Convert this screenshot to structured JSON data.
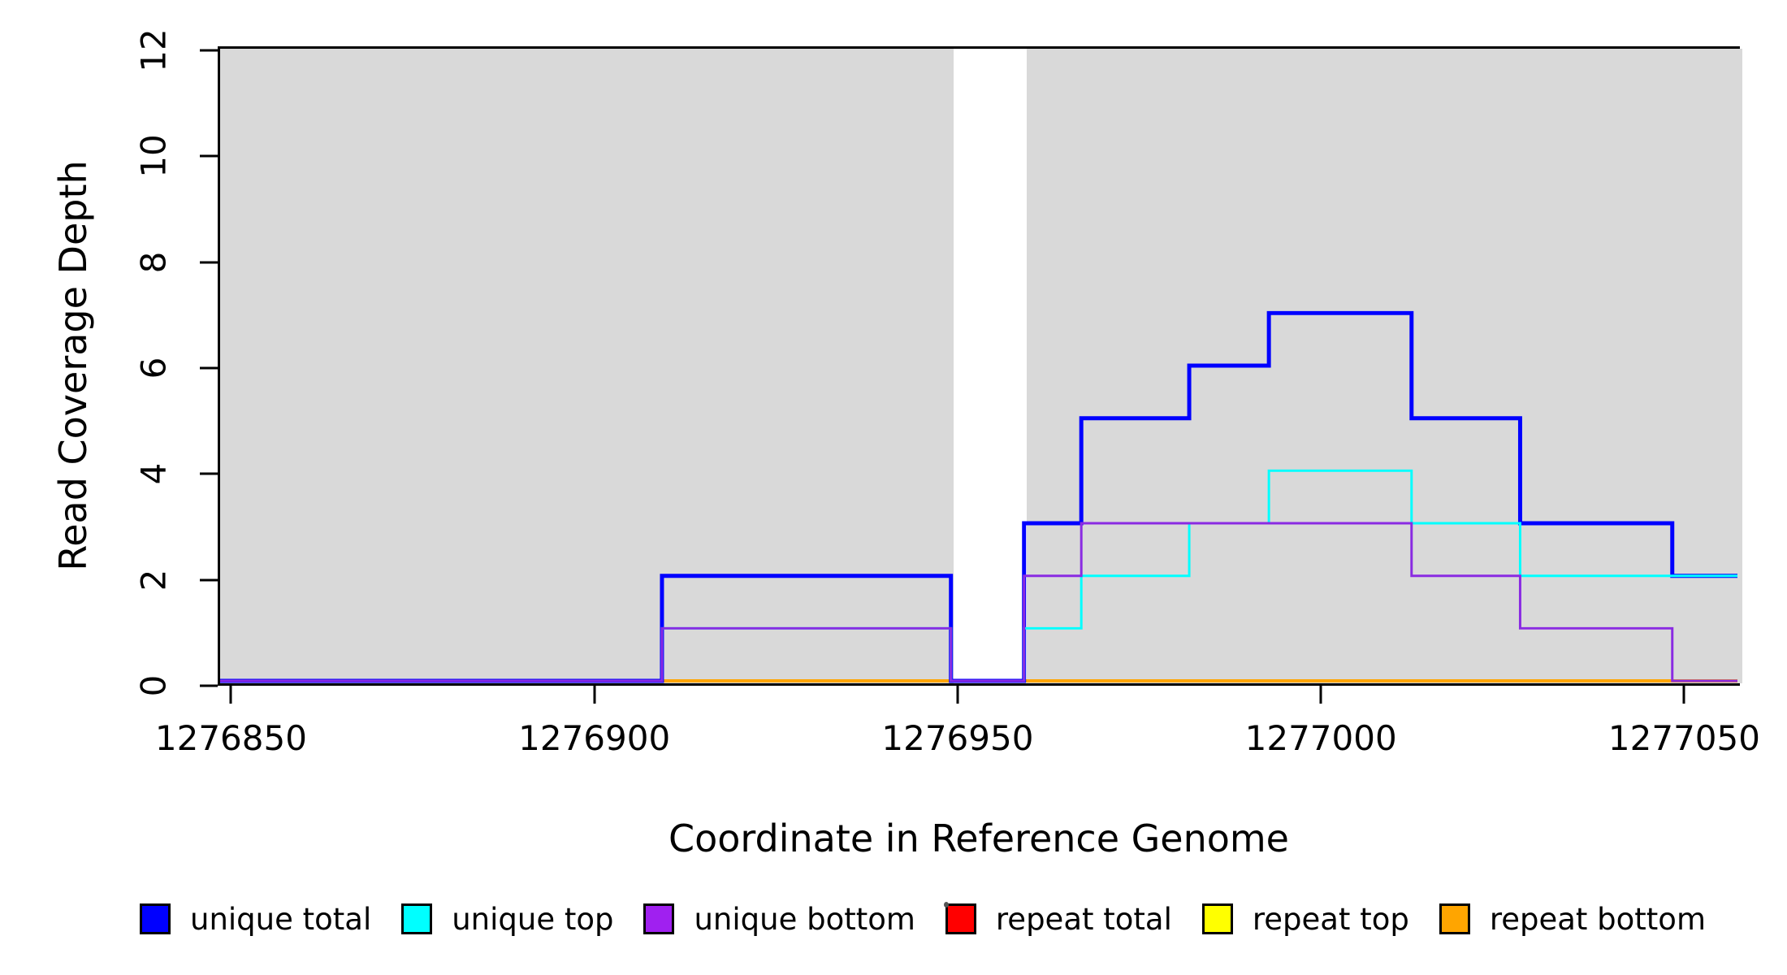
{
  "chart_data": {
    "type": "line",
    "step": true,
    "title": "",
    "xlabel": "Coordinate in Reference Genome",
    "ylabel": "Read Coverage Depth",
    "xlim": [
      1276848.5,
      1277058
    ],
    "ylim": [
      0,
      12
    ],
    "x_ticks": [
      1276850,
      1276900,
      1276950,
      1277000,
      1277050
    ],
    "y_ticks": [
      0,
      2,
      4,
      6,
      8,
      10,
      12
    ],
    "grid": false,
    "shaded_regions": {
      "color": "#D9D9D9",
      "note": "mappability shading with white gap",
      "ranges": [
        [
          1276848.5,
          1276949.4
        ],
        [
          1276959.5,
          1277058
        ]
      ]
    },
    "series": [
      {
        "name": "repeat total",
        "color": "#FF0000",
        "width": 3,
        "points": [
          [
            1276848.5,
            0
          ],
          [
            1277058,
            0
          ]
        ]
      },
      {
        "name": "repeat top",
        "color": "#FFFF00",
        "width": 3,
        "points": [
          [
            1276848.5,
            0
          ],
          [
            1277058,
            0
          ]
        ]
      },
      {
        "name": "repeat bottom",
        "color": "#FFA500",
        "width": 4,
        "points": [
          [
            1276848.5,
            0
          ],
          [
            1277058,
            0
          ]
        ]
      },
      {
        "name": "unique total",
        "color": "#0000FF",
        "width": 5,
        "points": [
          [
            1276848.5,
            0
          ],
          [
            1276909.5,
            0
          ],
          [
            1276909.5,
            2
          ],
          [
            1276949.4,
            2
          ],
          [
            1276949.4,
            0
          ],
          [
            1276959.5,
            0
          ],
          [
            1276959.5,
            3
          ],
          [
            1276967.4,
            3
          ],
          [
            1276967.4,
            5
          ],
          [
            1276982.3,
            5
          ],
          [
            1276982.3,
            6
          ],
          [
            1276993.3,
            6
          ],
          [
            1276993.3,
            7
          ],
          [
            1277013,
            7
          ],
          [
            1277013,
            5
          ],
          [
            1277028,
            5
          ],
          [
            1277028,
            3
          ],
          [
            1277049,
            3
          ],
          [
            1277049,
            2
          ],
          [
            1277058,
            2
          ]
        ]
      },
      {
        "name": "unique top",
        "color": "#00FFFF",
        "width": 3,
        "points": [
          [
            1276848.5,
            0
          ],
          [
            1276909.5,
            0
          ],
          [
            1276909.5,
            1
          ],
          [
            1276949.4,
            1
          ],
          [
            1276949.4,
            0
          ],
          [
            1276959.5,
            0
          ],
          [
            1276959.5,
            1
          ],
          [
            1276967.4,
            1
          ],
          [
            1276967.4,
            2
          ],
          [
            1276982.3,
            2
          ],
          [
            1276982.3,
            3
          ],
          [
            1276993.3,
            3
          ],
          [
            1276993.3,
            4
          ],
          [
            1277013,
            4
          ],
          [
            1277013,
            3
          ],
          [
            1277028,
            3
          ],
          [
            1277028,
            2
          ],
          [
            1277058,
            2
          ]
        ]
      },
      {
        "name": "unique bottom",
        "color": "#8A2BE2",
        "width": 3,
        "points": [
          [
            1276848.5,
            0
          ],
          [
            1276909.5,
            0
          ],
          [
            1276909.5,
            1
          ],
          [
            1276949.4,
            1
          ],
          [
            1276949.4,
            0
          ],
          [
            1276959.5,
            0
          ],
          [
            1276959.5,
            2
          ],
          [
            1276967.4,
            2
          ],
          [
            1276967.4,
            3
          ],
          [
            1277013,
            3
          ],
          [
            1277013,
            2
          ],
          [
            1277028,
            2
          ],
          [
            1277028,
            1
          ],
          [
            1277049,
            1
          ],
          [
            1277049,
            0
          ],
          [
            1277058,
            0
          ]
        ]
      }
    ],
    "legend": {
      "position": "bottom",
      "items": [
        {
          "label": "unique total",
          "color": "#0000FF"
        },
        {
          "label": "unique top",
          "color": "#00FFFF"
        },
        {
          "label": "unique bottom",
          "color": "#A020F0"
        },
        {
          "label": "repeat total",
          "color": "#FF0000"
        },
        {
          "label": "repeat top",
          "color": "#FFFF00"
        },
        {
          "label": "repeat bottom",
          "color": "#FFA500"
        }
      ]
    }
  }
}
